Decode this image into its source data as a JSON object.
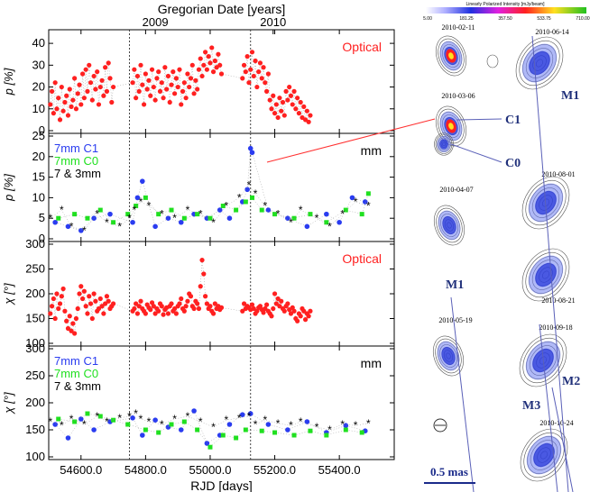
{
  "top_axis": {
    "label": "Gregorian Date [years]",
    "ticks": [
      "2009",
      "2010"
    ]
  },
  "x_axis": {
    "label": "RJD [days]",
    "range": [
      54500,
      55570
    ],
    "ticks": [
      54600,
      54800,
      55000,
      55200,
      55400
    ],
    "tick_labels": [
      "54600.0",
      "54800.0",
      "55000.0",
      "55200.0",
      "55400.0"
    ]
  },
  "event_lines": [
    54750,
    55125
  ],
  "colors": {
    "optical": "#ff2020",
    "c1": "#2a3cf0",
    "c0": "#20e020",
    "mm": "#000000",
    "link": "#ff3030",
    "track": "#5a60b8"
  },
  "chart_data": [
    {
      "type": "scatter",
      "name": "panel-p-optical",
      "ylabel": "p [%]",
      "ylim": [
        0,
        45
      ],
      "yticks": [
        0,
        10,
        20,
        30,
        40
      ],
      "legend": [
        "Optical"
      ],
      "series": [
        {
          "name": "Optical",
          "color": "#ff2020",
          "x": [
            54505,
            54510,
            54515,
            54520,
            54525,
            54530,
            54535,
            54540,
            54545,
            54550,
            54555,
            54560,
            54565,
            54570,
            54575,
            54580,
            54585,
            54590,
            54595,
            54600,
            54605,
            54610,
            54615,
            54620,
            54625,
            54630,
            54635,
            54640,
            54645,
            54650,
            54655,
            54660,
            54665,
            54670,
            54675,
            54680,
            54685,
            54690,
            54695,
            54700,
            54760,
            54765,
            54770,
            54775,
            54780,
            54785,
            54790,
            54795,
            54800,
            54805,
            54810,
            54815,
            54820,
            54825,
            54830,
            54835,
            54840,
            54845,
            54850,
            54855,
            54860,
            54865,
            54870,
            54875,
            54880,
            54885,
            54890,
            54895,
            54900,
            54905,
            54910,
            54915,
            54920,
            54925,
            54930,
            54935,
            54940,
            54945,
            54950,
            54955,
            54960,
            54965,
            54970,
            54975,
            54980,
            54985,
            54990,
            54995,
            55000,
            55005,
            55010,
            55015,
            55020,
            55025,
            55030,
            55035,
            55100,
            55105,
            55110,
            55115,
            55120,
            55125,
            55130,
            55135,
            55140,
            55145,
            55150,
            55155,
            55160,
            55165,
            55170,
            55175,
            55180,
            55185,
            55190,
            55195,
            55200,
            55205,
            55210,
            55215,
            55220,
            55225,
            55230,
            55235,
            55240,
            55245,
            55250,
            55255,
            55260,
            55265,
            55270,
            55275,
            55280,
            55285,
            55290,
            55295,
            55300,
            55305,
            55310
          ],
          "y": [
            12,
            18,
            8,
            22,
            10,
            15,
            5,
            20,
            9,
            13,
            16,
            7,
            19,
            11,
            14,
            24,
            10,
            17,
            21,
            12,
            26,
            15,
            28,
            18,
            30,
            22,
            14,
            25,
            19,
            27,
            12,
            20,
            23,
            16,
            29,
            18,
            31,
            24,
            13,
            20,
            22,
            28,
            15,
            25,
            18,
            30,
            21,
            12,
            26,
            19,
            23,
            16,
            28,
            20,
            14,
            24,
            27,
            18,
            22,
            15,
            29,
            19,
            25,
            13,
            21,
            27,
            17,
            24,
            20,
            28,
            12,
            18,
            22,
            15,
            26,
            20,
            24,
            30,
            17,
            23,
            19,
            28,
            33,
            25,
            30,
            36,
            28,
            34,
            31,
            38,
            27,
            32,
            29,
            35,
            30,
            26,
            24,
            30,
            27,
            34,
            22,
            28,
            36,
            25,
            32,
            20,
            27,
            31,
            24,
            29,
            22,
            18,
            26,
            14,
            10,
            16,
            8,
            12,
            6,
            15,
            9,
            13,
            7,
            18,
            14,
            20,
            16,
            12,
            18,
            10,
            15,
            8,
            13,
            6,
            11,
            5,
            9,
            4,
            7
          ]
        }
      ]
    },
    {
      "type": "scatter",
      "name": "panel-p-mm",
      "ylabel": "p [%]",
      "ylim": [
        0,
        25
      ],
      "yticks": [
        0,
        5,
        10,
        15,
        20,
        25
      ],
      "legend": [
        "7mm C1",
        "7mm C0",
        "7 & 3mm"
      ],
      "panel_label": "mm",
      "series": [
        {
          "name": "7mm C1",
          "color": "#2a3cf0",
          "x": [
            54520,
            54560,
            54600,
            54640,
            54690,
            54760,
            54775,
            54790,
            54830,
            54870,
            54910,
            54950,
            54990,
            55030,
            55060,
            55100,
            55115,
            55125,
            55130,
            55180,
            55240,
            55300,
            55360,
            55400,
            55440,
            55480
          ],
          "y": [
            4,
            3,
            2,
            5,
            6,
            4,
            10,
            14,
            3,
            5,
            4,
            6,
            5,
            7,
            5,
            9,
            12,
            22,
            21,
            7,
            5,
            3,
            6,
            4,
            10,
            9
          ]
        },
        {
          "name": "7mm C0",
          "color": "#20e020",
          "x": [
            54530,
            54580,
            54620,
            54660,
            54700,
            54745,
            54770,
            54800,
            54840,
            54880,
            54920,
            54960,
            55000,
            55040,
            55080,
            55110,
            55130,
            55160,
            55200,
            55260,
            55310,
            55360,
            55420,
            55470,
            55490
          ],
          "y": [
            5,
            6,
            5,
            7,
            4,
            6,
            8,
            10,
            6,
            7,
            5,
            6,
            5,
            8,
            7,
            9,
            10,
            7,
            6,
            5,
            6,
            4,
            7,
            6,
            11
          ]
        },
        {
          "name": "7 & 3mm",
          "color": "#000000",
          "x": [
            54505,
            54540,
            54570,
            54610,
            54650,
            54680,
            54720,
            54750,
            54765,
            54785,
            54810,
            54850,
            54890,
            54930,
            54970,
            55010,
            55050,
            55090,
            55120,
            55140,
            55170,
            55210,
            55250,
            55280,
            55330,
            55370,
            55410,
            55450,
            55490
          ],
          "y": [
            5,
            7,
            3,
            2,
            6,
            4,
            3,
            5,
            7,
            9,
            8,
            6,
            5,
            7,
            6,
            4,
            8,
            10,
            13,
            11,
            8,
            6,
            4,
            7,
            5,
            3,
            6,
            9,
            8
          ]
        }
      ]
    },
    {
      "type": "scatter",
      "name": "panel-chi-optical",
      "ylabel": "χ [°]",
      "ylim": [
        100,
        300
      ],
      "yticks": [
        100,
        150,
        200,
        250,
        300
      ],
      "legend": [
        "Optical"
      ],
      "series": [
        {
          "name": "Optical",
          "color": "#ff2020",
          "x": [
            54505,
            54510,
            54515,
            54520,
            54525,
            54530,
            54535,
            54540,
            54545,
            54550,
            54555,
            54560,
            54565,
            54570,
            54575,
            54580,
            54585,
            54590,
            54595,
            54600,
            54605,
            54610,
            54615,
            54620,
            54625,
            54630,
            54635,
            54640,
            54645,
            54650,
            54655,
            54660,
            54665,
            54670,
            54675,
            54680,
            54685,
            54690,
            54695,
            54700,
            54760,
            54765,
            54770,
            54775,
            54780,
            54785,
            54790,
            54795,
            54800,
            54805,
            54810,
            54815,
            54820,
            54825,
            54830,
            54835,
            54840,
            54845,
            54850,
            54855,
            54860,
            54865,
            54870,
            54875,
            54880,
            54885,
            54890,
            54895,
            54900,
            54905,
            54910,
            54915,
            54920,
            54925,
            54930,
            54935,
            54940,
            54945,
            54950,
            54955,
            54960,
            54965,
            54970,
            54975,
            54980,
            54985,
            54990,
            54995,
            55000,
            55005,
            55010,
            55015,
            55020,
            55025,
            55030,
            55035,
            55100,
            55105,
            55110,
            55115,
            55120,
            55125,
            55130,
            55135,
            55140,
            55145,
            55150,
            55155,
            55160,
            55165,
            55170,
            55175,
            55180,
            55185,
            55190,
            55195,
            55200,
            55205,
            55210,
            55215,
            55220,
            55225,
            55230,
            55235,
            55240,
            55245,
            55250,
            55255,
            55260,
            55265,
            55270,
            55275,
            55280,
            55285,
            55290,
            55295,
            55300,
            55305,
            55310
          ],
          "y": [
            160,
            175,
            190,
            150,
            200,
            170,
            180,
            195,
            210,
            165,
            145,
            130,
            155,
            125,
            140,
            120,
            150,
            170,
            200,
            215,
            190,
            205,
            175,
            160,
            195,
            180,
            150,
            200,
            185,
            165,
            170,
            190,
            175,
            160,
            180,
            195,
            185,
            170,
            175,
            180,
            165,
            170,
            180,
            160,
            175,
            185,
            170,
            165,
            160,
            178,
            172,
            168,
            182,
            175,
            160,
            170,
            165,
            180,
            175,
            158,
            168,
            172,
            160,
            175,
            180,
            165,
            170,
            160,
            175,
            180,
            190,
            170,
            165,
            175,
            185,
            200,
            195,
            175,
            170,
            185,
            180,
            170,
            215,
            268,
            240,
            195,
            180,
            170,
            175,
            165,
            160,
            180,
            170,
            175,
            168,
            172,
            165,
            180,
            170,
            175,
            172,
            168,
            178,
            170,
            160,
            165,
            172,
            175,
            168,
            162,
            170,
            178,
            165,
            160,
            155,
            170,
            200,
            180,
            190,
            175,
            185,
            170,
            165,
            175,
            180,
            168,
            160,
            172,
            165,
            150,
            145,
            160,
            155,
            170,
            165,
            148,
            160,
            155,
            165
          ]
        }
      ]
    },
    {
      "type": "scatter",
      "name": "panel-chi-mm",
      "ylabel": "χ [°]",
      "ylim": [
        100,
        300
      ],
      "yticks": [
        100,
        150,
        200,
        250,
        300
      ],
      "legend": [
        "7mm C1",
        "7mm C0",
        "7 & 3mm"
      ],
      "panel_label": "mm",
      "series": [
        {
          "name": "7mm C1",
          "color": "#2a3cf0",
          "x": [
            54520,
            54560,
            54600,
            54640,
            54690,
            54760,
            54790,
            54830,
            54870,
            54910,
            54950,
            54990,
            55030,
            55060,
            55100,
            55125,
            55180,
            55240,
            55300,
            55360,
            55420,
            55480
          ],
          "y": [
            160,
            135,
            170,
            150,
            165,
            172,
            140,
            168,
            155,
            150,
            185,
            125,
            140,
            160,
            178,
            180,
            160,
            150,
            165,
            145,
            158,
            148
          ]
        },
        {
          "name": "7mm C0",
          "color": "#20e020",
          "x": [
            54530,
            54580,
            54620,
            54660,
            54700,
            54745,
            54800,
            54840,
            54880,
            54920,
            54960,
            55000,
            55040,
            55080,
            55110,
            55160,
            55200,
            55260,
            55310,
            55360,
            55420,
            55470
          ],
          "y": [
            170,
            165,
            180,
            175,
            168,
            160,
            150,
            145,
            160,
            165,
            150,
            118,
            140,
            135,
            150,
            148,
            145,
            140,
            148,
            140,
            150,
            145
          ]
        },
        {
          "name": "7 & 3mm",
          "color": "#000000",
          "x": [
            54505,
            54540,
            54570,
            54610,
            54650,
            54680,
            54720,
            54750,
            54770,
            54785,
            54810,
            54850,
            54890,
            54930,
            54970,
            55010,
            55050,
            55090,
            55120,
            55140,
            55170,
            55210,
            55250,
            55280,
            55330,
            55370,
            55410,
            55450,
            55490
          ],
          "y": [
            165,
            158,
            170,
            160,
            175,
            165,
            172,
            175,
            180,
            170,
            165,
            160,
            170,
            175,
            165,
            155,
            168,
            172,
            175,
            160,
            168,
            162,
            158,
            165,
            155,
            150,
            160,
            158,
            162
          ]
        }
      ]
    }
  ],
  "vlbi": {
    "colorbar": {
      "title": "Linearly Polarized Intensity [mJy/beam]",
      "ticks": [
        "5.00",
        "181.25",
        "357.50",
        "533.75",
        "710.00"
      ]
    },
    "left_column": [
      "2010-02-11",
      "2010-03-06",
      "2010-04-07",
      "2010-05-19"
    ],
    "right_column": [
      "2010-06-14",
      "2010-08-01",
      "2010-08-21",
      "2010-09-18",
      "2010-10-24"
    ],
    "component_labels": [
      "C1",
      "C0"
    ],
    "knot_labels": [
      "M1",
      "M1",
      "M2",
      "M3"
    ],
    "scale_bar": "0.5 mas"
  }
}
